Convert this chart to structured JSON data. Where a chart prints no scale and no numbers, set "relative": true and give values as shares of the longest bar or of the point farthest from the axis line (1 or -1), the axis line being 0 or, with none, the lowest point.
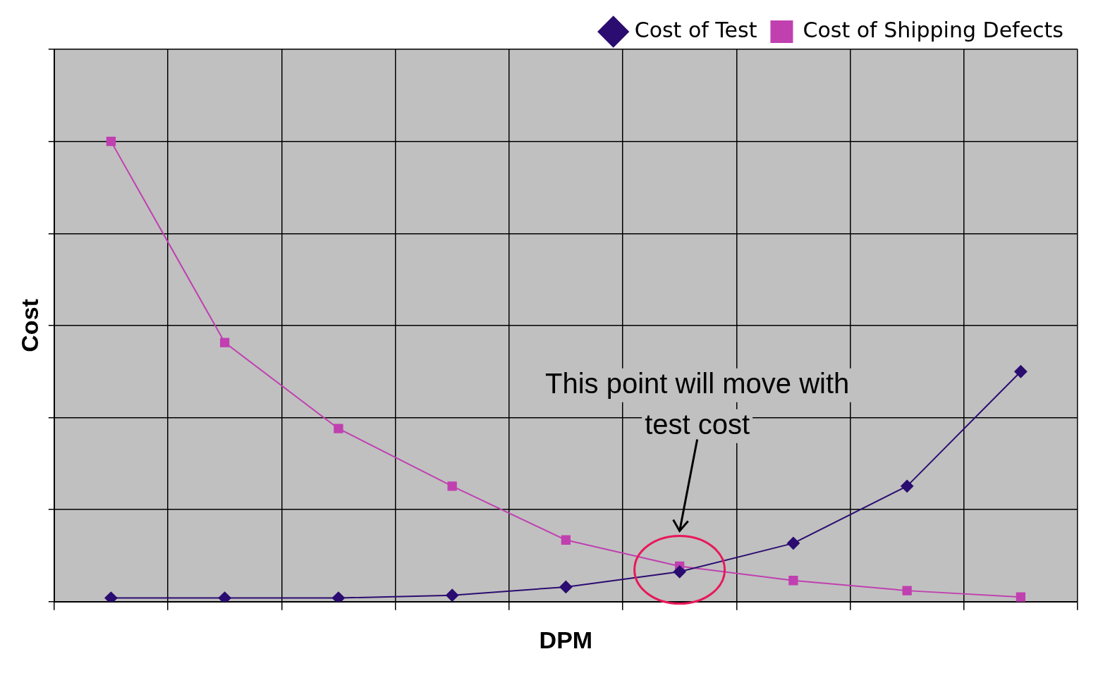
{
  "chart_data": {
    "type": "line",
    "relative": true,
    "xlabel": "DPM",
    "ylabel": "Cost",
    "categories": [
      null,
      null,
      null,
      null,
      null,
      null,
      null,
      null,
      null
    ],
    "series": [
      {
        "name": "Cost of Test",
        "color": "#2b0c70",
        "marker": "diamond",
        "values": [
          0.008,
          0.008,
          0.008,
          0.014,
          0.032,
          0.065,
          0.127,
          0.251,
          0.5
        ]
      },
      {
        "name": "Cost of Shipping Defects",
        "color": "#c040b0",
        "marker": "square",
        "values": [
          1,
          0.563,
          0.376,
          0.251,
          0.134,
          0.077,
          0.046,
          0.024,
          0.01
        ]
      }
    ],
    "annotations": [
      "This point will move with test cost"
    ],
    "grid": true,
    "legend": "top right",
    "line_style": "solid"
  }
}
